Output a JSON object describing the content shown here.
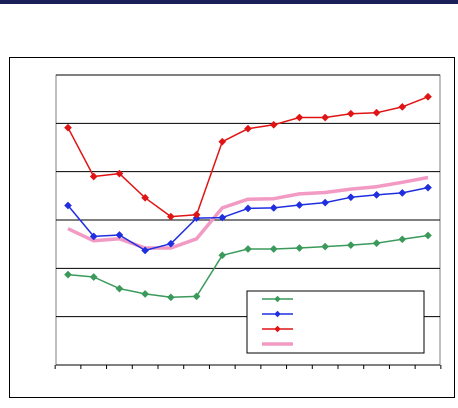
{
  "chart_data": {
    "type": "line",
    "title": "",
    "xlabel": "",
    "ylabel": "",
    "ylim": [
      0,
      6
    ],
    "y_gridlines": [
      1,
      2,
      3,
      4,
      5,
      6
    ],
    "x": [
      1,
      2,
      3,
      4,
      5,
      6,
      7,
      8,
      9,
      10,
      11,
      12,
      13,
      14,
      15
    ],
    "grid": true,
    "legend_position": "bottom-right",
    "series": [
      {
        "marker": "diamond",
        "color": "#3a9a5b",
        "values": [
          1.87,
          1.82,
          1.58,
          1.47,
          1.4,
          1.42,
          2.27,
          2.4,
          2.4,
          2.42,
          2.45,
          2.48,
          2.52,
          2.6,
          2.68
        ]
      },
      {
        "marker": "diamond",
        "color": "#1f2fe0",
        "values": [
          3.3,
          2.66,
          2.69,
          2.37,
          2.51,
          3.04,
          3.05,
          3.24,
          3.25,
          3.31,
          3.36,
          3.47,
          3.52,
          3.56,
          3.67
        ]
      },
      {
        "marker": "diamond",
        "color": "#e01414",
        "values": [
          4.91,
          3.9,
          3.96,
          3.46,
          3.07,
          3.11,
          4.62,
          4.89,
          4.97,
          5.12,
          5.12,
          5.2,
          5.22,
          5.34,
          5.55
        ]
      },
      {
        "marker": "none",
        "color": "#f29ac4",
        "values": [
          2.82,
          2.57,
          2.61,
          2.42,
          2.42,
          2.61,
          3.25,
          3.43,
          3.44,
          3.54,
          3.57,
          3.64,
          3.69,
          3.78,
          3.88
        ]
      }
    ]
  }
}
